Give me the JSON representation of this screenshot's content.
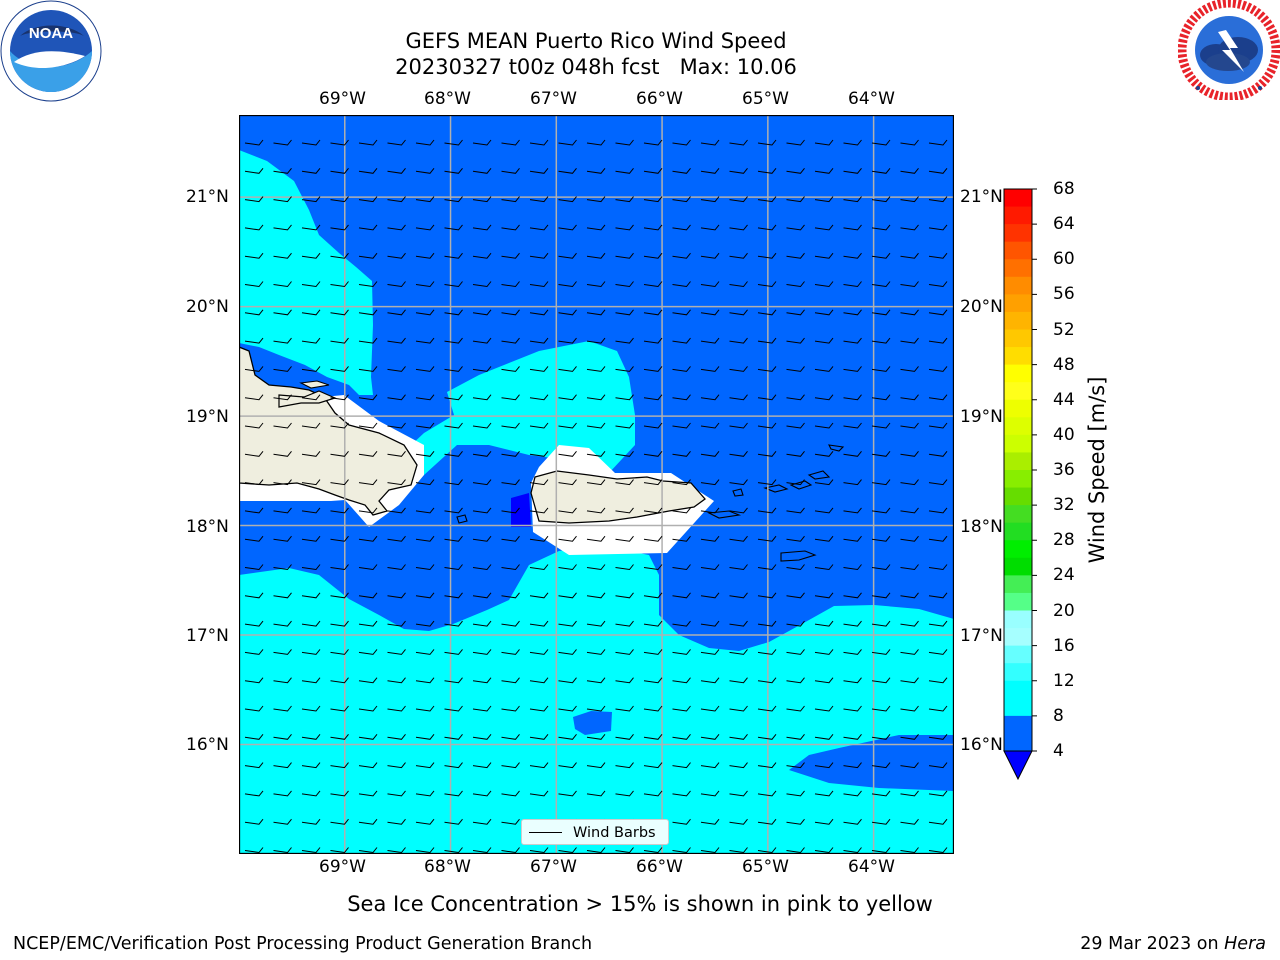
{
  "header": {
    "title_line1": "GEFS MEAN Puerto Rico Wind Speed",
    "title_line2": "20230327 t00z 048h fcst   Max: 10.06"
  },
  "logos": {
    "left": "noara-logo",
    "left_text": "NOAA",
    "left_ring_text": "NATIONAL OCEANIC AND ATMOSPHERIC ADMINISTRATION · U.S. DEPARTMENT OF COMMERCE",
    "right": "national-weather-service-logo",
    "right_ring_text": "NATIONAL WEATHER SERVICE"
  },
  "map": {
    "lon_ticks": [
      "69°W",
      "68°W",
      "67°W",
      "66°W",
      "65°W",
      "64°W"
    ],
    "lat_ticks": [
      "21°N",
      "20°N",
      "19°N",
      "18°N",
      "17°N",
      "16°N"
    ],
    "extent": {
      "lon_min": -70.0,
      "lon_max": -63.24,
      "lat_min": 15.0,
      "lat_max": 21.75
    },
    "gridlines": true,
    "legend_label": "Wind Barbs",
    "barb_direction": "easterly trade winds"
  },
  "colorbar": {
    "label": "Wind Speed [m/s]",
    "ticks": [
      "68",
      "64",
      "60",
      "56",
      "52",
      "48",
      "44",
      "40",
      "36",
      "32",
      "28",
      "24",
      "20",
      "16",
      "12",
      "8",
      "4"
    ],
    "levels": [
      4,
      6,
      8,
      10,
      12,
      14,
      16,
      18,
      20,
      24,
      28,
      32,
      36,
      40,
      44,
      48,
      52,
      56,
      60,
      64,
      68
    ],
    "colors": [
      "#0066ff",
      "#0066ff",
      "#00ffff",
      "#00ffff",
      "#33ffff",
      "#66ffff",
      "#99ffff",
      "#a6ffff",
      "#55ff77",
      "#22ee22",
      "#00dd00",
      "#55dd00",
      "#aaee00",
      "#ddff00",
      "#ffff00",
      "#ffee00",
      "#ffc000",
      "#ffa500",
      "#ff8000",
      "#ff5500",
      "#ff2a00",
      "#ff0000"
    ],
    "under_color": "#0000ff"
  },
  "colors": {
    "wind_4_8": "#0066ff",
    "wind_8_12": "#00ffff",
    "wind_below_4": "#0000ff",
    "land": "#efeedf",
    "grid": "#b0b0b0"
  },
  "footer": {
    "note": "Sea Ice Concentration > 15% is shown in pink to yellow",
    "left": "NCEP/EMC/Verification Post Processing Product Generation Branch",
    "right_date": "29 Mar 2023 on ",
    "right_host": "Hera"
  }
}
